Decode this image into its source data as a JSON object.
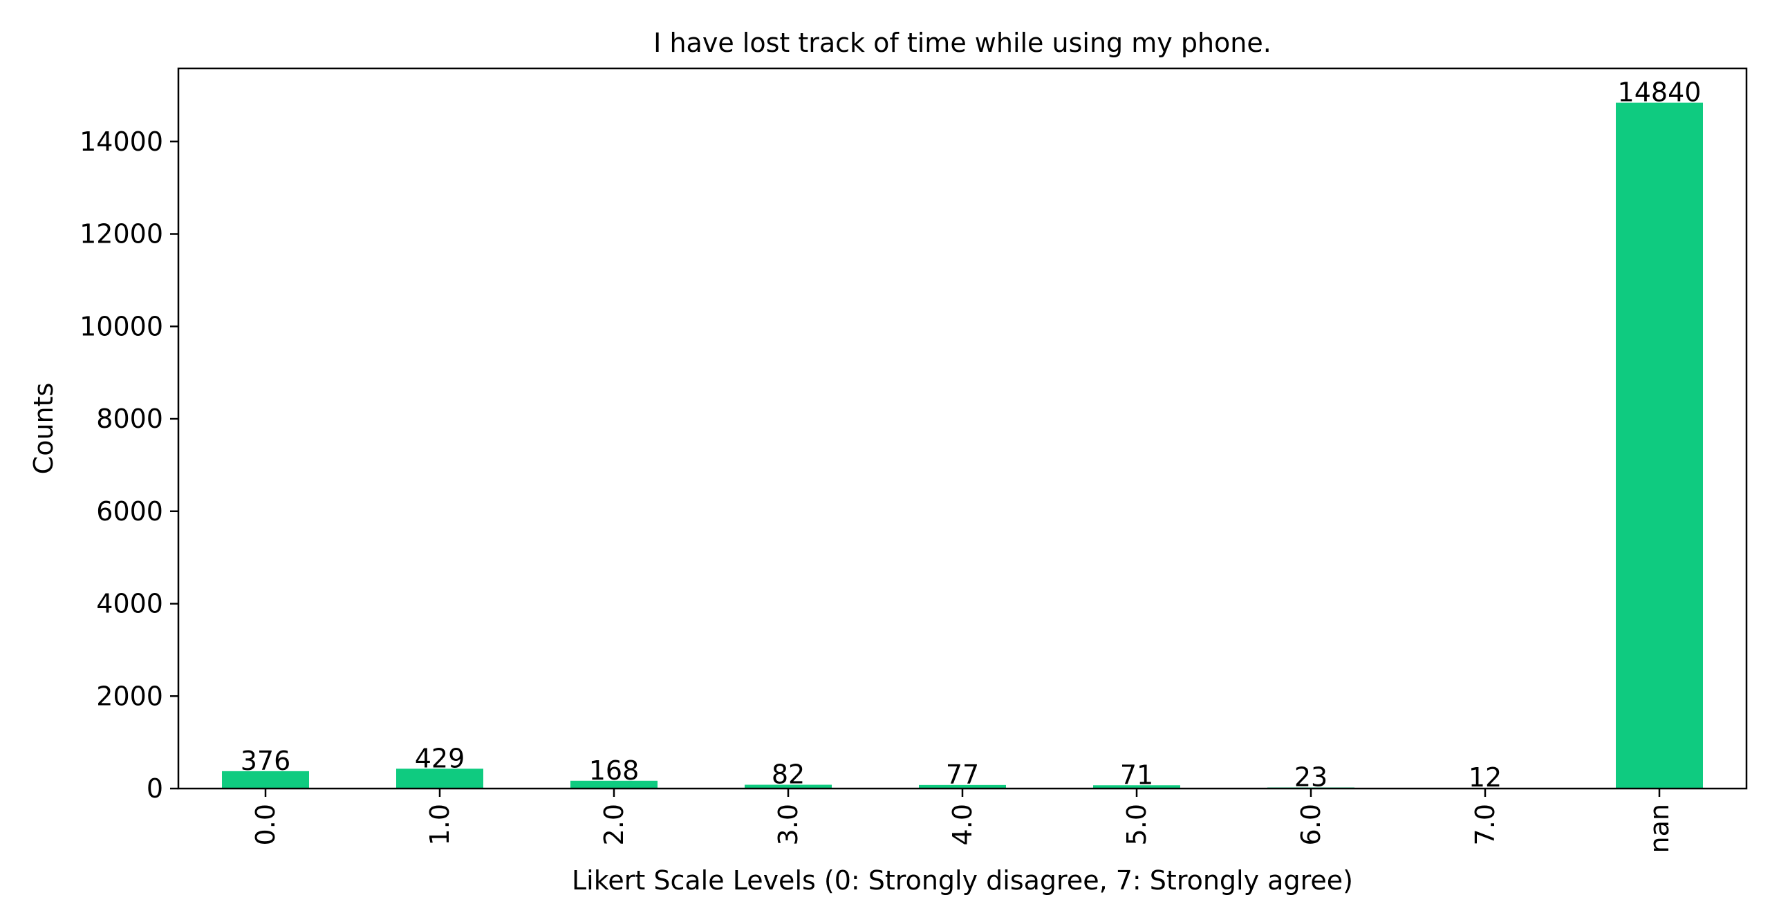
{
  "chart_data": {
    "type": "bar",
    "title": "I have lost track of time while using my phone.",
    "xlabel": "Likert Scale Levels (0: Strongly disagree, 7: Strongly agree)",
    "ylabel": "Counts",
    "categories": [
      "0.0",
      "1.0",
      "2.0",
      "3.0",
      "4.0",
      "5.0",
      "6.0",
      "7.0",
      "nan"
    ],
    "values": [
      376,
      429,
      168,
      82,
      77,
      71,
      23,
      12,
      14840
    ],
    "data_labels": [
      "376",
      "429",
      "168",
      "82",
      "77",
      "71",
      "23",
      "12",
      "14840"
    ],
    "ylim": [
      0,
      15582
    ],
    "yticks": [
      0,
      2000,
      4000,
      6000,
      8000,
      10000,
      12000,
      14000
    ],
    "ytick_labels": [
      "0",
      "2000",
      "4000",
      "6000",
      "8000",
      "10000",
      "12000",
      "14000"
    ],
    "xtick_rotation": "vertical",
    "grid": false,
    "legend": "none",
    "colors": {
      "bar": "#0fcb80",
      "axis": "#000000",
      "background": "#ffffff"
    }
  }
}
